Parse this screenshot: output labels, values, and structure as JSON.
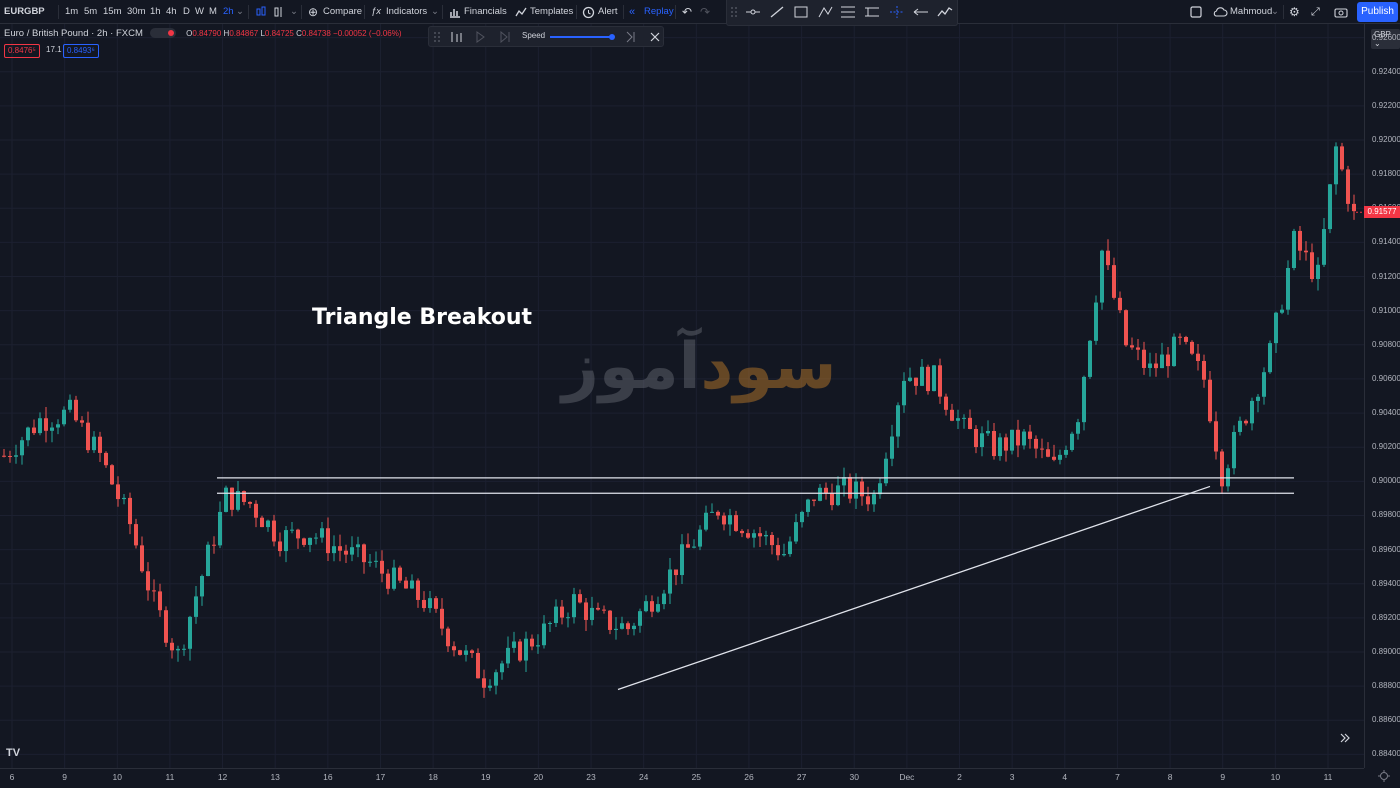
{
  "toolbar": {
    "symbol": "EURGBP",
    "intervals": [
      "1m",
      "5m",
      "15m",
      "30m",
      "1h",
      "4h",
      "D",
      "W",
      "M",
      "2h"
    ],
    "compare_label": "Compare",
    "indicators_label": "Indicators",
    "financials_label": "Financials",
    "templates_label": "Templates",
    "alert_label": "Alert",
    "replay_label": "Replay",
    "user_label": "Mahmoud",
    "publish_label": "Publish"
  },
  "replay": {
    "speed_label": "Speed",
    "speed_level": 1.0
  },
  "legend": {
    "title": "Euro / British Pound · 2h · FXCM",
    "o_label": "O",
    "o_val": "0.84790",
    "h_label": "H",
    "h_val": "0.84867",
    "l_label": "L",
    "l_val": "0.84725",
    "c_label": "C",
    "c_val": "0.84738",
    "change": "−0.00052 (−0.06%)",
    "sell_price": "0.8476⁵",
    "spread": "17.1",
    "buy_price": "0.8493⁶"
  },
  "price_axis": {
    "currency": "GBP",
    "current_price": "0.91577",
    "current_color": "#f23645"
  },
  "colors": {
    "up": "#26a69a",
    "down": "#ef5350",
    "accent": "#2962ff",
    "line": "#e0e3eb"
  },
  "annotation": "Triangle Breakout",
  "watermark": {
    "text_dark": "آموز",
    "text_accent": "سود"
  },
  "chart_data": {
    "type": "candlestick",
    "symbol": "EURGBP",
    "timeframe": "2h",
    "x_tick_labels": [
      "6",
      "9",
      "10",
      "11",
      "12",
      "13",
      "16",
      "17",
      "18",
      "19",
      "20",
      "23",
      "24",
      "25",
      "26",
      "27",
      "30",
      "Dec",
      "2",
      "3",
      "4",
      "7",
      "8",
      "9",
      "10",
      "11"
    ],
    "y_ticks": [
      "0.92600",
      "0.92400",
      "0.92200",
      "0.92000",
      "0.91800",
      "0.91600",
      "0.91400",
      "0.91200",
      "0.91000",
      "0.90800",
      "0.90600",
      "0.90400",
      "0.90200",
      "0.90000",
      "0.89800",
      "0.89600",
      "0.89400",
      "0.89200",
      "0.89000",
      "0.88800",
      "0.88600",
      "0.88400"
    ],
    "ylim": [
      0.8832,
      0.9268
    ],
    "path": [
      [
        0,
        0.9015
      ],
      [
        6,
        0.9036
      ],
      [
        11,
        0.904
      ],
      [
        16,
        0.9015
      ],
      [
        21,
        0.8975
      ],
      [
        25,
        0.8928
      ],
      [
        29,
        0.8898
      ],
      [
        33,
        0.8945
      ],
      [
        37,
        0.8991
      ],
      [
        41,
        0.8987
      ],
      [
        46,
        0.8967
      ],
      [
        51,
        0.897
      ],
      [
        56,
        0.896
      ],
      [
        61,
        0.8952
      ],
      [
        66,
        0.8939
      ],
      [
        70,
        0.893
      ],
      [
        75,
        0.8905
      ],
      [
        80,
        0.8885
      ],
      [
        85,
        0.8899
      ],
      [
        90,
        0.8912
      ],
      [
        95,
        0.893
      ],
      [
        99,
        0.8919
      ],
      [
        104,
        0.8914
      ],
      [
        109,
        0.8936
      ],
      [
        114,
        0.896
      ],
      [
        119,
        0.8984
      ],
      [
        125,
        0.8971
      ],
      [
        130,
        0.8958
      ],
      [
        135,
        0.8992
      ],
      [
        140,
        0.8995
      ],
      [
        145,
        0.8991
      ],
      [
        150,
        0.9063
      ],
      [
        155,
        0.906
      ],
      [
        160,
        0.903
      ],
      [
        165,
        0.902
      ],
      [
        170,
        0.9025
      ],
      [
        175,
        0.9008
      ],
      [
        179,
        0.904
      ],
      [
        183,
        0.9135
      ],
      [
        187,
        0.908
      ],
      [
        191,
        0.9065
      ],
      [
        196,
        0.908
      ],
      [
        200,
        0.906
      ],
      [
        203,
        0.9005
      ],
      [
        207,
        0.904
      ],
      [
        211,
        0.9075
      ],
      [
        215,
        0.914
      ],
      [
        219,
        0.912
      ],
      [
        222,
        0.9195
      ],
      [
        225,
        0.9155
      ]
    ],
    "horizontal_lines": [
      0.9002,
      0.8993
    ],
    "trendline": [
      [
        0.8878,
        0.8997
      ]
    ],
    "grid": true
  }
}
